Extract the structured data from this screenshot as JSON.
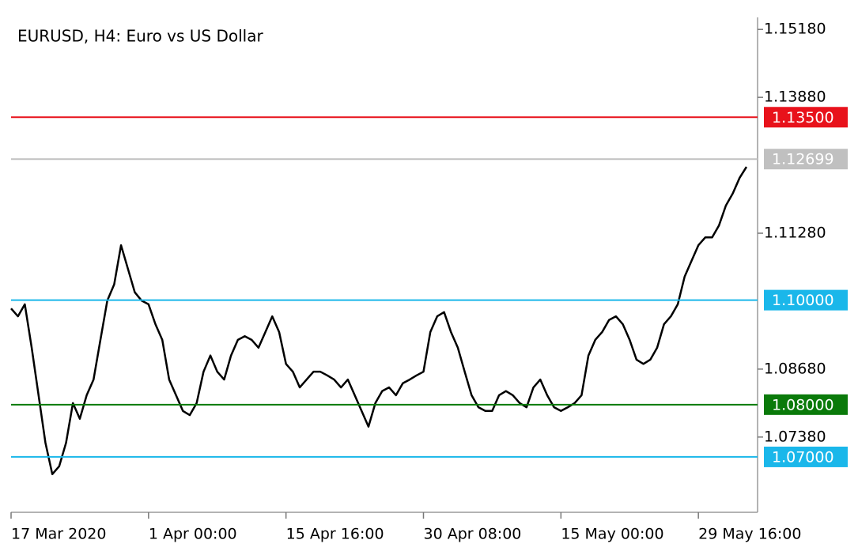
{
  "chart_data": {
    "type": "line",
    "title": "EURUSD, H4:  Euro vs US Dollar",
    "categories": [
      "17 Mar 2020",
      null,
      null,
      null,
      null,
      null,
      null,
      null,
      null,
      null,
      null,
      null,
      null,
      null,
      null,
      null,
      null,
      null,
      null,
      null,
      "1 Apr 00:00",
      null,
      null,
      null,
      null,
      null,
      null,
      null,
      null,
      null,
      null,
      null,
      null,
      null,
      null,
      null,
      null,
      null,
      null,
      null,
      "15 Apr 16:00",
      null,
      null,
      null,
      null,
      null,
      null,
      null,
      null,
      null,
      null,
      null,
      null,
      null,
      null,
      null,
      null,
      null,
      null,
      null,
      "30 Apr 08:00",
      null,
      null,
      null,
      null,
      null,
      null,
      null,
      null,
      null,
      null,
      null,
      null,
      null,
      null,
      null,
      null,
      null,
      null,
      null,
      "15 May 00:00",
      null,
      null,
      null,
      null,
      null,
      null,
      null,
      null,
      null,
      null,
      null,
      null,
      null,
      null,
      null,
      null,
      null,
      null,
      null,
      "29 May 16:00",
      null,
      null,
      null,
      null,
      null,
      null,
      null
    ],
    "series": [
      {
        "color": "#000000",
        "values": [
          1.0984,
          1.0969,
          1.0992,
          1.0909,
          1.0818,
          1.0727,
          1.0667,
          1.0682,
          1.0727,
          1.0803,
          1.0773,
          1.0818,
          1.0848,
          1.0924,
          1.0999,
          1.103,
          1.1105,
          1.106,
          1.1015,
          1.0999,
          1.0992,
          1.0954,
          1.0924,
          1.0848,
          1.0818,
          1.0788,
          1.078,
          1.0803,
          1.0863,
          1.0894,
          1.0863,
          1.0848,
          1.0894,
          1.0924,
          1.0931,
          1.0924,
          1.0909,
          1.0939,
          1.0969,
          1.0939,
          1.0878,
          1.0863,
          1.0833,
          1.0848,
          1.0863,
          1.0863,
          1.0856,
          1.0848,
          1.0833,
          1.0848,
          1.0818,
          1.0788,
          1.0758,
          1.0803,
          1.0826,
          1.0833,
          1.0818,
          1.0841,
          1.0848,
          1.0856,
          1.0863,
          1.0939,
          1.0969,
          1.0977,
          1.0939,
          1.0909,
          1.0863,
          1.0818,
          1.0795,
          1.0788,
          1.0788,
          1.0818,
          1.0826,
          1.0818,
          1.0803,
          1.0795,
          1.0833,
          1.0848,
          1.0818,
          1.0795,
          1.0788,
          1.0795,
          1.0803,
          1.0818,
          1.0894,
          1.0924,
          1.0939,
          1.0962,
          1.0969,
          1.0954,
          1.0924,
          1.0886,
          1.0878,
          1.0886,
          1.0909,
          1.0954,
          1.0969,
          1.0992,
          1.1045,
          1.1075,
          1.1105,
          1.112,
          1.112,
          1.1143,
          1.1181,
          1.1204,
          1.1234,
          1.1255
        ]
      }
    ],
    "ylim": [
      1.0594,
      1.1541
    ],
    "yticks": [
      {
        "value": 1.1518,
        "label": "1.15180"
      },
      {
        "value": 1.1388,
        "label": "1.13880"
      },
      {
        "value": 1.1128,
        "label": "1.11280"
      },
      {
        "value": 1.0868,
        "label": "1.08680"
      },
      {
        "value": 1.0738,
        "label": "1.07380"
      }
    ],
    "levels": [
      {
        "value": 1.135,
        "label": "1.13500",
        "color": "#e8121b"
      },
      {
        "value": 1.12699,
        "label": "1.12699",
        "color": "#c0c0c0"
      },
      {
        "value": 1.1,
        "label": "1.10000",
        "color": "#1ab7ea"
      },
      {
        "value": 1.08,
        "label": "1.08000",
        "color": "#0a7a0a"
      },
      {
        "value": 1.07,
        "label": "1.07000",
        "color": "#1ab7ea"
      }
    ]
  }
}
